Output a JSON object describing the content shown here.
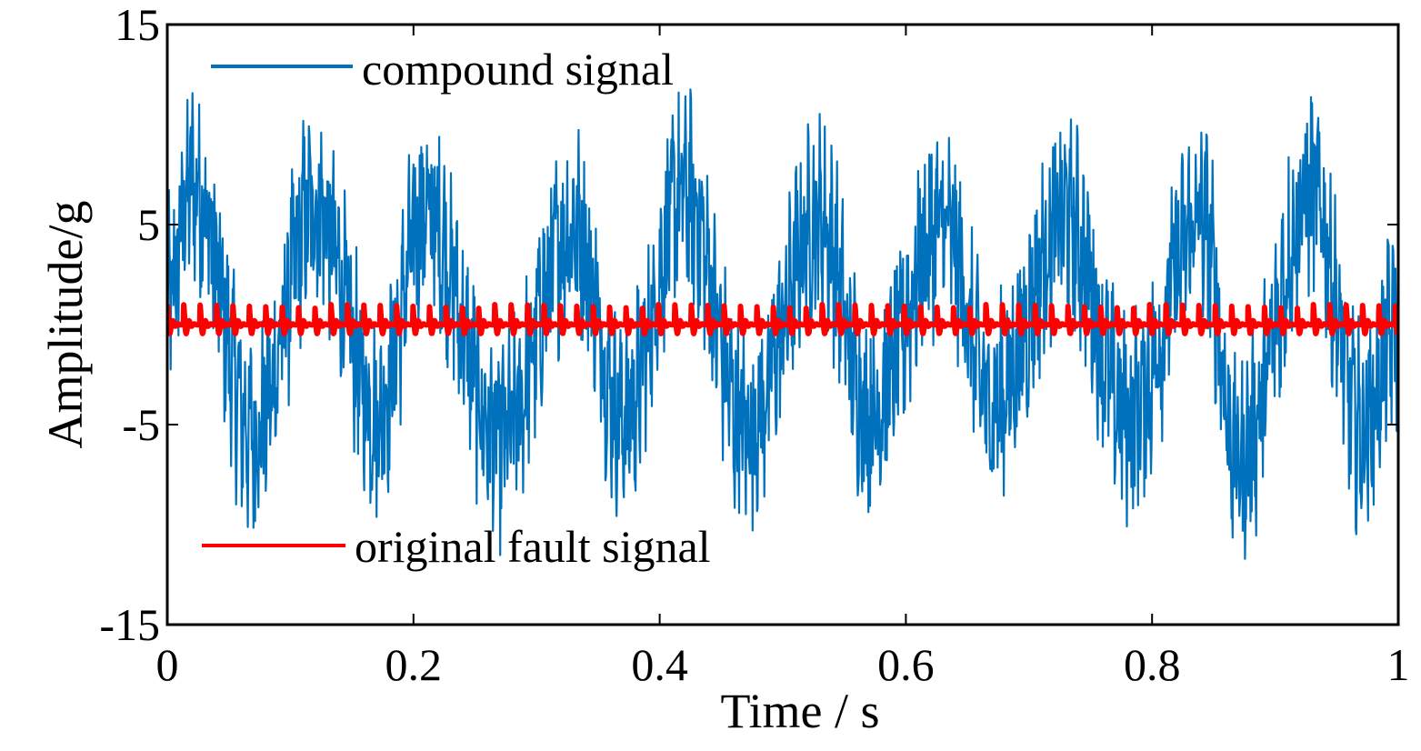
{
  "chart_data": {
    "type": "line",
    "title": "",
    "xlabel": "Time / s",
    "ylabel": "Amplitude/g",
    "xlim": [
      0,
      1
    ],
    "ylim": [
      -15,
      15
    ],
    "x_ticks": [
      0,
      0.2,
      0.4,
      0.6,
      0.8,
      1
    ],
    "x_tick_labels": [
      "0",
      "0.2",
      "0.4",
      "0.6",
      "0.8",
      "1"
    ],
    "y_ticks": [
      -15,
      -5,
      5,
      15
    ],
    "y_tick_labels": [
      "-15",
      "-5",
      "5",
      "15"
    ],
    "grid": false,
    "legend": [
      {
        "name": "compound signal",
        "color": "#0072BD",
        "placement": "top-left"
      },
      {
        "name": "original fault signal",
        "color": "#FF0000",
        "placement": "bottom-left"
      }
    ],
    "series": [
      {
        "name": "compound signal",
        "color": "#0072BD",
        "description": "dense noisy vibration with periodic envelope",
        "envelope_peaks_x": [
          0.02,
          0.12,
          0.21,
          0.33,
          0.42,
          0.53,
          0.63,
          0.73,
          0.84,
          0.93
        ],
        "envelope_peaks_y": [
          11.5,
          9.5,
          9,
          8,
          10.5,
          8.5,
          8,
          8.5,
          8.5,
          10.5
        ],
        "envelope_troughs_x": [
          0.07,
          0.17,
          0.27,
          0.37,
          0.47,
          0.57,
          0.67,
          0.78,
          0.87,
          0.97
        ],
        "envelope_troughs_y": [
          -9,
          -7,
          -9.5,
          -7.5,
          -8.5,
          -7,
          -6.5,
          -7.5,
          -11,
          -8.5
        ]
      },
      {
        "name": "original fault signal",
        "color": "#FF0000",
        "description": "periodic impulses",
        "impulse_period_s": 0.0133,
        "amplitude": 1
      }
    ]
  }
}
